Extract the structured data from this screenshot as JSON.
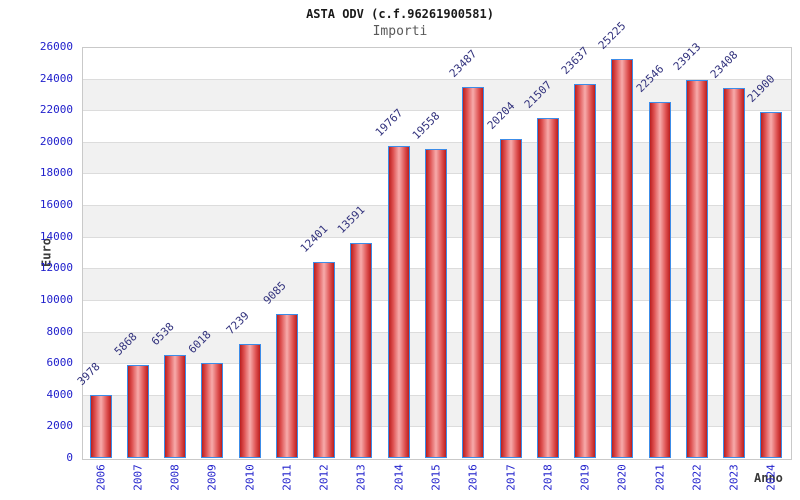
{
  "chart_data": {
    "type": "bar",
    "title": "ASTA ODV (c.f.96261900581)",
    "subtitle": "Importi",
    "xlabel": "Anno",
    "ylabel": "Euro",
    "categories": [
      "2006",
      "2007",
      "2008",
      "2009",
      "2010",
      "2011",
      "2012",
      "2013",
      "2014",
      "2015",
      "2016",
      "2017",
      "2018",
      "2019",
      "2020",
      "2021",
      "2022",
      "2023",
      "2024"
    ],
    "values": [
      3978,
      5868,
      6538,
      6018,
      7239,
      9085,
      12401,
      13591,
      19767,
      19558,
      23487,
      20204,
      21507,
      23637,
      25225,
      22546,
      23913,
      23408,
      21900
    ],
    "ylim": [
      0,
      26000
    ],
    "ytick_step": 2000,
    "yticks": [
      0,
      2000,
      4000,
      6000,
      8000,
      10000,
      12000,
      14000,
      16000,
      18000,
      20000,
      22000,
      24000,
      26000
    ],
    "grid": "horizontal gridlines every 2000 with alternating white/light-gray bands",
    "legend": "none",
    "bar_value_labels": true,
    "bar_value_label_angle": 45,
    "x_tick_label_angle": 90
  },
  "colors": {
    "background": "#ffffff",
    "plot_border": "#c9c9c9",
    "grid_line": "#dcdcdc",
    "band_alt": "#f1f1f1",
    "band_main": "#ffffff",
    "bar_border": "#3c8ce8",
    "bar_fill_edge": "#bb1f1f",
    "bar_fill_mid": "#dd4f4f",
    "bar_fill_center": "#f7abab",
    "tick_label": "#2121cc",
    "value_label": "#32327d",
    "title": "#1a1a1a",
    "subtitle": "#5a5a5a",
    "axis_title": "#3a3a3a"
  }
}
